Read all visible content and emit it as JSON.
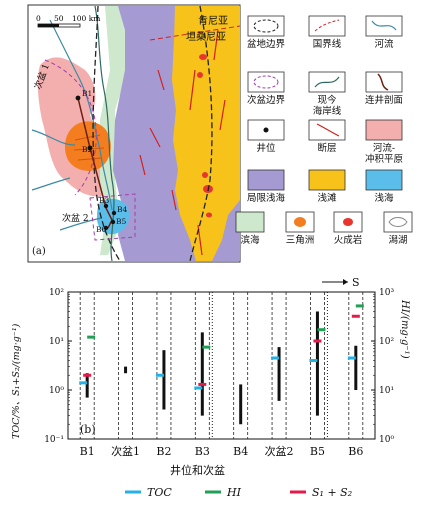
{
  "map": {
    "scale_labels": [
      "0",
      "50",
      "100 km"
    ],
    "place_labels": {
      "nigeria_tanzania": [
        "肯尼亚",
        "坦桑尼亚"
      ],
      "sub_basin_1": "次盆 1",
      "sub_basin_2": "次盆 2",
      "panel": "(a)"
    },
    "wells": [
      "B1",
      "B2",
      "B3",
      "B4",
      "B5",
      "B6"
    ],
    "legend": [
      {
        "symbol": "basin-boundary",
        "label": "盆地边界"
      },
      {
        "symbol": "national-border",
        "label": "国界线"
      },
      {
        "symbol": "river",
        "label": "河流"
      },
      {
        "symbol": "sub-basin-boundary",
        "label": "次盆边界"
      },
      {
        "symbol": "modern-coastline",
        "label": "现今\n海岸线"
      },
      {
        "symbol": "well-section",
        "label": "连井剖面"
      },
      {
        "symbol": "well",
        "label": "井位"
      },
      {
        "symbol": "fault",
        "label": "断层"
      },
      {
        "symbol": "fluvial-plain",
        "label": "河流-\n冲积平原"
      },
      {
        "symbol": "restricted-shallow-sea",
        "label": "局限浅海"
      },
      {
        "symbol": "shoal",
        "label": "浅滩"
      },
      {
        "symbol": "shallow-sea",
        "label": "浅海"
      },
      {
        "symbol": "littoral",
        "label": "滨海"
      },
      {
        "symbol": "delta",
        "label": "三角洲"
      },
      {
        "symbol": "igneous",
        "label": "火成岩"
      },
      {
        "symbol": "lagoon",
        "label": "潟湖"
      }
    ],
    "colors": {
      "restricted_sea": "#a59bd2",
      "shoal": "#f7c31a",
      "shallow_sea": "#5bbdea",
      "littoral": "#cde8cc",
      "delta": "#f47d20",
      "fluvial": "#f3aeae",
      "igneous": "#e8362f",
      "river": "#3b8aa3",
      "section": "#6b2012"
    }
  },
  "chart_data": {
    "type": "range",
    "panel": "(b)",
    "arrow_label": "S",
    "xlabel": "井位和次盆",
    "ylabel_left": "TOC/%、S₁+S₂/(mg·g⁻¹)",
    "ylabel_right": "HI/(mg·g⁻¹)",
    "y_left_scale": "log",
    "y_left_ticks": [
      "10⁻¹",
      "10⁰",
      "10¹",
      "10²"
    ],
    "y_right_ticks": [
      "10⁰",
      "10¹",
      "10²",
      "10³"
    ],
    "y_left_lim": [
      0.1,
      100
    ],
    "y_right_lim": [
      1,
      1000
    ],
    "categories": [
      "B1",
      "次盆1",
      "B2",
      "B3",
      "B4",
      "次盆2",
      "B5",
      "B6"
    ],
    "ranges_left": [
      [
        0.7,
        2.2
      ],
      [
        2.2,
        3.0
      ],
      [
        0.4,
        6.5
      ],
      [
        0.3,
        15
      ],
      [
        0.2,
        1.3
      ],
      [
        0.6,
        7.5
      ],
      [
        0.3,
        40
      ],
      [
        1.0,
        8.0
      ]
    ],
    "markers": [
      {
        "category": "B1",
        "series": "TOC",
        "value": 1.4
      },
      {
        "category": "B1",
        "series": "S1+S2",
        "value": 2.0
      },
      {
        "category": "B1",
        "series": "HI",
        "value": 120
      },
      {
        "category": "B2",
        "series": "TOC",
        "value": 2.0
      },
      {
        "category": "B3",
        "series": "TOC",
        "value": 1.1
      },
      {
        "category": "B3",
        "series": "S1+S2",
        "value": 1.3
      },
      {
        "category": "B3",
        "series": "HI",
        "value": 75
      },
      {
        "category": "次盆2",
        "series": "TOC",
        "value": 4.5
      },
      {
        "category": "B5",
        "series": "TOC",
        "value": 4.0
      },
      {
        "category": "B5",
        "series": "S1+S2",
        "value": 10
      },
      {
        "category": "B5",
        "series": "HI",
        "value": 170
      },
      {
        "category": "B6",
        "series": "TOC",
        "value": 4.5
      },
      {
        "category": "B6",
        "series": "S1+S2",
        "value": 32
      },
      {
        "category": "B6",
        "series": "HI",
        "value": 520
      }
    ],
    "legend": [
      {
        "key": "TOC",
        "label": "TOC",
        "color": "#23b1e6"
      },
      {
        "key": "HI",
        "label": "HI",
        "color": "#1fa055"
      },
      {
        "key": "S1+S2",
        "label": "S₁ + S₂",
        "color": "#e5194a"
      }
    ]
  }
}
